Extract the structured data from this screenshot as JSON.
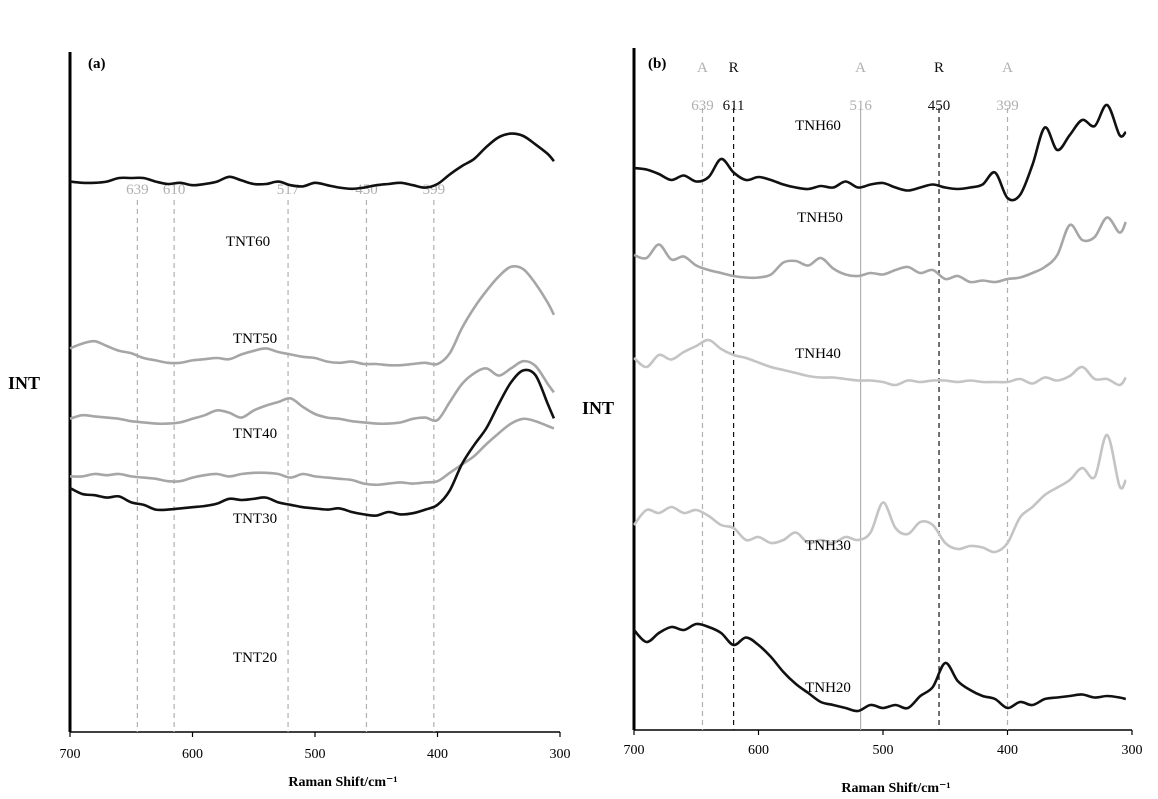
{
  "chart_data": [
    {
      "panel": "(a)",
      "type": "line",
      "ylabel": "INT",
      "xlabel": "Raman Shift/cm⁻¹",
      "xlim": [
        700,
        300
      ],
      "xticks": [
        "700",
        "600",
        "500",
        "400",
        "300"
      ],
      "reference_lines": [
        {
          "x": 645,
          "label": "639",
          "color": "#b0b0b0"
        },
        {
          "x": 615,
          "label": "610",
          "color": "#b0b0b0"
        },
        {
          "x": 522,
          "label": "517",
          "color": "#b0b0b0"
        },
        {
          "x": 458,
          "label": "450",
          "color": "#b0b0b0"
        },
        {
          "x": 403,
          "label": "399",
          "color": "#b0b0b0"
        }
      ],
      "series": [
        {
          "name": "TNT60",
          "color": "#111111",
          "x": [
            700,
            690,
            680,
            670,
            660,
            650,
            640,
            630,
            620,
            610,
            600,
            590,
            580,
            570,
            560,
            550,
            540,
            530,
            520,
            510,
            500,
            490,
            480,
            470,
            460,
            450,
            440,
            430,
            420,
            410,
            400,
            390,
            380,
            370,
            360,
            350,
            340,
            330,
            320,
            310,
            305
          ],
          "y": [
            0.57,
            0.56,
            0.56,
            0.57,
            0.6,
            0.6,
            0.6,
            0.57,
            0.55,
            0.56,
            0.54,
            0.55,
            0.57,
            0.61,
            0.58,
            0.55,
            0.55,
            0.57,
            0.54,
            0.53,
            0.56,
            0.54,
            0.52,
            0.51,
            0.52,
            0.54,
            0.55,
            0.56,
            0.54,
            0.52,
            0.55,
            0.63,
            0.7,
            0.76,
            0.86,
            0.94,
            0.97,
            0.95,
            0.88,
            0.8,
            0.74
          ]
        },
        {
          "name": "TNT50",
          "color": "#a6a6a6",
          "x": [
            700,
            690,
            680,
            670,
            660,
            650,
            640,
            630,
            620,
            610,
            600,
            590,
            580,
            570,
            560,
            550,
            540,
            530,
            520,
            510,
            500,
            490,
            480,
            470,
            460,
            450,
            440,
            430,
            420,
            410,
            400,
            390,
            380,
            370,
            360,
            350,
            340,
            330,
            320,
            310,
            305
          ],
          "y": [
            0.18,
            0.22,
            0.24,
            0.2,
            0.16,
            0.14,
            0.1,
            0.08,
            0.06,
            0.06,
            0.08,
            0.09,
            0.1,
            0.09,
            0.13,
            0.16,
            0.18,
            0.15,
            0.13,
            0.11,
            0.1,
            0.07,
            0.06,
            0.07,
            0.05,
            0.05,
            0.04,
            0.04,
            0.05,
            0.06,
            0.05,
            0.14,
            0.35,
            0.52,
            0.66,
            0.78,
            0.86,
            0.84,
            0.72,
            0.56,
            0.46
          ]
        },
        {
          "name": "TNT40",
          "color": "#a6a6a6",
          "x": [
            700,
            690,
            680,
            670,
            660,
            650,
            640,
            630,
            620,
            610,
            600,
            590,
            580,
            570,
            560,
            550,
            540,
            530,
            520,
            510,
            500,
            490,
            480,
            470,
            460,
            450,
            440,
            430,
            420,
            410,
            400,
            390,
            380,
            370,
            360,
            350,
            340,
            330,
            320,
            310,
            305
          ],
          "y": [
            0.26,
            0.29,
            0.28,
            0.27,
            0.26,
            0.24,
            0.23,
            0.22,
            0.22,
            0.23,
            0.26,
            0.29,
            0.33,
            0.31,
            0.27,
            0.33,
            0.37,
            0.4,
            0.43,
            0.36,
            0.3,
            0.27,
            0.26,
            0.24,
            0.23,
            0.22,
            0.22,
            0.23,
            0.26,
            0.27,
            0.25,
            0.4,
            0.55,
            0.64,
            0.68,
            0.62,
            0.68,
            0.74,
            0.7,
            0.55,
            0.48
          ]
        },
        {
          "name": "TNT30",
          "color": "#a6a6a6",
          "x": [
            700,
            690,
            680,
            670,
            660,
            650,
            640,
            630,
            620,
            610,
            600,
            590,
            580,
            570,
            560,
            550,
            540,
            530,
            520,
            510,
            500,
            490,
            480,
            470,
            460,
            450,
            440,
            430,
            420,
            410,
            400,
            390,
            380,
            370,
            360,
            350,
            340,
            330,
            320,
            310,
            305
          ],
          "y": [
            0.28,
            0.28,
            0.3,
            0.29,
            0.3,
            0.28,
            0.27,
            0.26,
            0.24,
            0.24,
            0.27,
            0.29,
            0.3,
            0.28,
            0.3,
            0.31,
            0.31,
            0.3,
            0.27,
            0.3,
            0.28,
            0.27,
            0.26,
            0.25,
            0.22,
            0.21,
            0.22,
            0.23,
            0.22,
            0.23,
            0.24,
            0.31,
            0.38,
            0.45,
            0.55,
            0.64,
            0.72,
            0.76,
            0.74,
            0.7,
            0.68
          ]
        },
        {
          "name": "TNT20",
          "color": "#111111",
          "x": [
            700,
            690,
            680,
            670,
            660,
            650,
            640,
            630,
            620,
            610,
            600,
            590,
            580,
            570,
            560,
            550,
            540,
            530,
            520,
            510,
            500,
            490,
            480,
            470,
            460,
            450,
            440,
            430,
            420,
            410,
            400,
            390,
            380,
            370,
            360,
            350,
            340,
            330,
            320,
            310,
            305
          ],
          "y": [
            0.6,
            0.55,
            0.54,
            0.52,
            0.53,
            0.48,
            0.46,
            0.42,
            0.42,
            0.43,
            0.44,
            0.45,
            0.47,
            0.51,
            0.5,
            0.51,
            0.52,
            0.48,
            0.46,
            0.44,
            0.43,
            0.42,
            0.43,
            0.4,
            0.38,
            0.37,
            0.4,
            0.38,
            0.39,
            0.42,
            0.46,
            0.58,
            0.8,
            0.96,
            1.1,
            1.3,
            1.48,
            1.58,
            1.54,
            1.3,
            1.18
          ]
        }
      ]
    },
    {
      "panel": "(b)",
      "type": "line",
      "ylabel": "INT",
      "xlabel": "Raman Shift/cm⁻¹",
      "xlim": [
        700,
        300
      ],
      "xticks": [
        "700",
        "600",
        "500",
        "400",
        "300"
      ],
      "reference_lines": [
        {
          "x": 645,
          "label": "639",
          "phase": "A",
          "color": "#b0b0b0",
          "style": "dashed"
        },
        {
          "x": 620,
          "label": "611",
          "phase": "R",
          "color": "#111111",
          "style": "dashed"
        },
        {
          "x": 518,
          "label": "516",
          "phase": "A",
          "color": "#b0b0b0",
          "style": "solid"
        },
        {
          "x": 455,
          "label": "450",
          "phase": "R",
          "color": "#111111",
          "style": "dashed"
        },
        {
          "x": 400,
          "label": "399",
          "phase": "A",
          "color": "#b0b0b0",
          "style": "dashed"
        }
      ],
      "series": [
        {
          "name": "TNH60",
          "color": "#111111",
          "x": [
            700,
            690,
            680,
            670,
            660,
            650,
            640,
            630,
            620,
            610,
            600,
            590,
            580,
            570,
            560,
            550,
            540,
            530,
            520,
            510,
            500,
            490,
            480,
            470,
            460,
            450,
            440,
            430,
            420,
            410,
            400,
            390,
            380,
            370,
            360,
            350,
            340,
            330,
            320,
            310,
            305
          ],
          "y": [
            0.58,
            0.57,
            0.54,
            0.5,
            0.53,
            0.49,
            0.52,
            0.64,
            0.55,
            0.5,
            0.52,
            0.5,
            0.47,
            0.45,
            0.44,
            0.46,
            0.45,
            0.49,
            0.45,
            0.47,
            0.48,
            0.45,
            0.43,
            0.45,
            0.47,
            0.45,
            0.44,
            0.45,
            0.47,
            0.55,
            0.38,
            0.4,
            0.6,
            0.85,
            0.7,
            0.8,
            0.9,
            0.86,
            1.0,
            0.8,
            0.82
          ]
        },
        {
          "name": "TNH50",
          "color": "#a6a6a6",
          "x": [
            700,
            690,
            680,
            670,
            660,
            650,
            640,
            630,
            620,
            610,
            600,
            590,
            580,
            570,
            560,
            550,
            540,
            530,
            520,
            510,
            500,
            490,
            480,
            470,
            460,
            450,
            440,
            430,
            420,
            410,
            400,
            390,
            380,
            370,
            360,
            350,
            340,
            330,
            320,
            310,
            305
          ],
          "y": [
            0.5,
            0.48,
            0.57,
            0.47,
            0.49,
            0.43,
            0.4,
            0.38,
            0.36,
            0.35,
            0.35,
            0.37,
            0.45,
            0.46,
            0.43,
            0.48,
            0.41,
            0.37,
            0.36,
            0.38,
            0.37,
            0.4,
            0.42,
            0.38,
            0.4,
            0.34,
            0.36,
            0.32,
            0.33,
            0.32,
            0.34,
            0.35,
            0.38,
            0.42,
            0.5,
            0.7,
            0.6,
            0.62,
            0.75,
            0.65,
            0.72
          ]
        },
        {
          "name": "TNH40",
          "color": "#c4c4c4",
          "x": [
            700,
            690,
            680,
            670,
            660,
            650,
            640,
            630,
            620,
            610,
            600,
            590,
            580,
            570,
            560,
            550,
            540,
            530,
            520,
            510,
            500,
            490,
            480,
            470,
            460,
            450,
            440,
            430,
            420,
            410,
            400,
            390,
            380,
            370,
            360,
            350,
            340,
            330,
            320,
            310,
            305
          ],
          "y": [
            0.58,
            0.52,
            0.6,
            0.57,
            0.62,
            0.66,
            0.7,
            0.64,
            0.6,
            0.58,
            0.55,
            0.52,
            0.5,
            0.48,
            0.46,
            0.45,
            0.45,
            0.44,
            0.43,
            0.43,
            0.42,
            0.4,
            0.43,
            0.42,
            0.43,
            0.43,
            0.42,
            0.43,
            0.42,
            0.42,
            0.42,
            0.44,
            0.41,
            0.45,
            0.43,
            0.46,
            0.52,
            0.44,
            0.44,
            0.4,
            0.45
          ]
        },
        {
          "name": "TNH30",
          "color": "#c4c4c4",
          "x": [
            700,
            690,
            680,
            670,
            660,
            650,
            640,
            630,
            620,
            610,
            600,
            590,
            580,
            570,
            560,
            550,
            540,
            530,
            520,
            510,
            500,
            490,
            480,
            470,
            460,
            450,
            440,
            430,
            420,
            410,
            400,
            390,
            380,
            370,
            360,
            350,
            340,
            330,
            320,
            310,
            305
          ],
          "y": [
            0.4,
            0.5,
            0.48,
            0.52,
            0.48,
            0.5,
            0.46,
            0.4,
            0.38,
            0.3,
            0.32,
            0.28,
            0.3,
            0.35,
            0.28,
            0.3,
            0.28,
            0.32,
            0.3,
            0.35,
            0.55,
            0.38,
            0.34,
            0.42,
            0.4,
            0.28,
            0.24,
            0.26,
            0.25,
            0.22,
            0.28,
            0.45,
            0.52,
            0.6,
            0.65,
            0.7,
            0.78,
            0.72,
            1.0,
            0.66,
            0.7
          ]
        },
        {
          "name": "TNH20",
          "color": "#111111",
          "x": [
            700,
            690,
            680,
            670,
            660,
            650,
            640,
            630,
            620,
            610,
            600,
            590,
            580,
            570,
            560,
            550,
            540,
            530,
            520,
            510,
            500,
            490,
            480,
            470,
            460,
            450,
            440,
            430,
            420,
            410,
            400,
            390,
            380,
            370,
            360,
            350,
            340,
            330,
            320,
            310,
            305
          ],
          "y": [
            0.8,
            0.72,
            0.78,
            0.82,
            0.8,
            0.84,
            0.82,
            0.78,
            0.7,
            0.75,
            0.7,
            0.62,
            0.52,
            0.44,
            0.38,
            0.32,
            0.3,
            0.28,
            0.26,
            0.3,
            0.28,
            0.3,
            0.28,
            0.36,
            0.42,
            0.58,
            0.46,
            0.4,
            0.36,
            0.34,
            0.28,
            0.32,
            0.3,
            0.34,
            0.35,
            0.36,
            0.37,
            0.35,
            0.36,
            0.35,
            0.34
          ]
        }
      ]
    }
  ]
}
